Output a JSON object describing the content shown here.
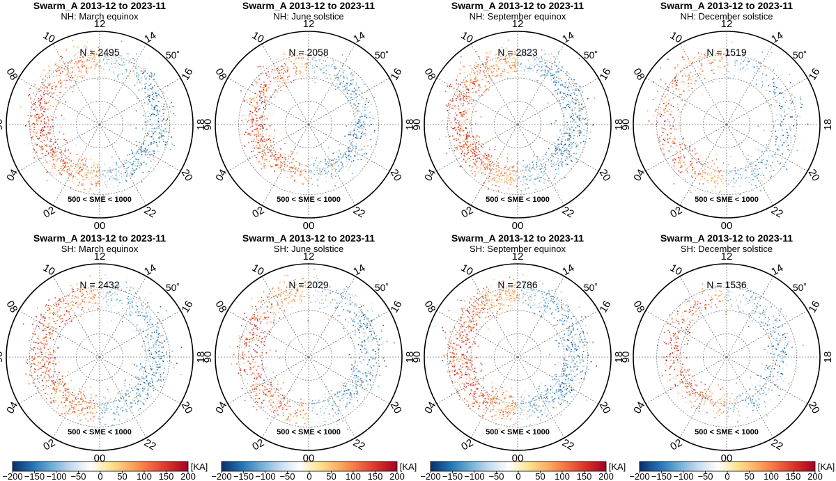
{
  "figure": {
    "common_note": "500 < SME < 1000",
    "radial_label": "50˚",
    "mlt_labels": [
      "00",
      "02",
      "04",
      "06",
      "08",
      "10",
      "12",
      "14",
      "16",
      "18",
      "20",
      "22"
    ]
  },
  "chart_data": [
    {
      "type": "scatter",
      "title": "Swarm_A 2013-12 to 2023-11",
      "subtitle": "NH: March equinox",
      "count_label": "N = 2495",
      "n": 2495,
      "oval_lat": 65,
      "spread": 5.5,
      "mix": 0.45
    },
    {
      "type": "scatter",
      "title": "Swarm_A 2013-12 to 2023-11",
      "subtitle": "NH: June solstice",
      "count_label": "N = 2058",
      "n": 2058,
      "oval_lat": 67,
      "spread": 5.0,
      "mix": 0.55
    },
    {
      "type": "scatter",
      "title": "Swarm_A 2013-12 to 2023-11",
      "subtitle": "NH: September equinox",
      "count_label": "N = 2823",
      "n": 2823,
      "oval_lat": 65,
      "spread": 5.5,
      "mix": 0.5
    },
    {
      "type": "scatter",
      "title": "Swarm_A 2013-12 to 2023-11",
      "subtitle": "NH: December solstice",
      "count_label": "N = 1519",
      "n": 1519,
      "oval_lat": 64,
      "spread": 6.0,
      "mix": 0.35
    },
    {
      "type": "scatter",
      "title": "Swarm_A 2013-12 to 2023-11",
      "subtitle": "SH: March equinox",
      "count_label": "N = 2432",
      "n": 2432,
      "oval_lat": 65,
      "spread": 5.5,
      "mix": 0.45
    },
    {
      "type": "scatter",
      "title": "Swarm_A 2013-12 to 2023-11",
      "subtitle": "SH: June solstice",
      "count_label": "N = 2029",
      "n": 2029,
      "oval_lat": 64,
      "spread": 6.0,
      "mix": 0.3
    },
    {
      "type": "scatter",
      "title": "Swarm_A 2013-12 to 2023-11",
      "subtitle": "SH: September equinox",
      "count_label": "N = 2786",
      "n": 2786,
      "oval_lat": 65,
      "spread": 5.5,
      "mix": 0.5
    },
    {
      "type": "scatter",
      "title": "Swarm_A 2013-12 to 2023-11",
      "subtitle": "SH: December solstice",
      "count_label": "N = 1536",
      "n": 1536,
      "oval_lat": 67,
      "spread": 5.0,
      "mix": 0.55
    }
  ],
  "colorbar": {
    "unit": "[KA]",
    "min": -200,
    "max": 200,
    "ticks": [
      "−200",
      "−150",
      "−100",
      "−50",
      "0",
      "50",
      "100",
      "150",
      "200"
    ],
    "tick_values": [
      -200,
      -150,
      -100,
      -50,
      0,
      50,
      100,
      150,
      200
    ],
    "colors": [
      "#08306b",
      "#2171b5",
      "#6baed6",
      "#c6dbef",
      "#ffffff",
      "#fee391",
      "#fdae61",
      "#f46d43",
      "#d73027",
      "#a50026"
    ]
  },
  "axes": {
    "min_lat": 50,
    "radial_circles": [
      50,
      60,
      70,
      80
    ]
  }
}
